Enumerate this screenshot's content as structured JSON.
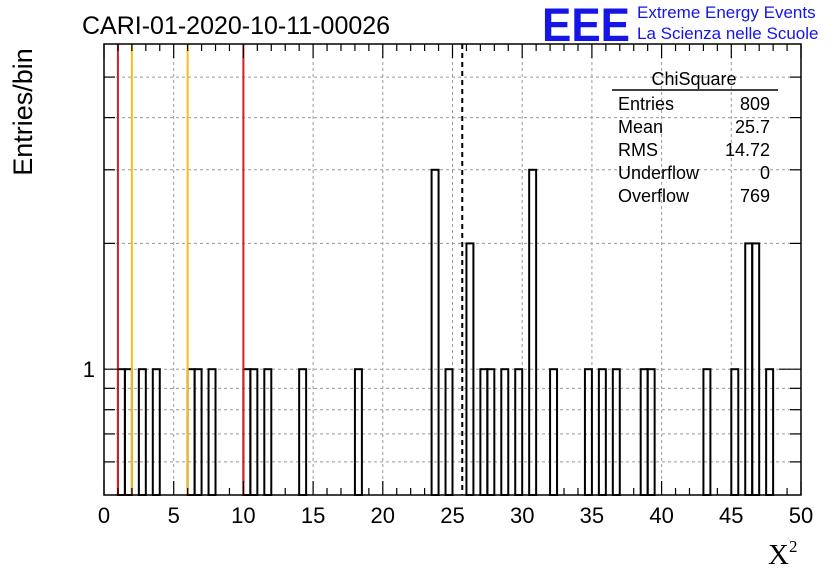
{
  "chart_data": {
    "type": "histogram",
    "title": "CARI-01-2020-10-11-00026",
    "xlabel": "X",
    "xlabel_superscript": "2",
    "ylabel": "Entries/bin",
    "xlim": [
      0,
      50
    ],
    "ylim": [
      0.5,
      6
    ],
    "log_y": true,
    "grid": true,
    "x_ticks": [
      "0",
      "5",
      "10",
      "15",
      "20",
      "25",
      "30",
      "35",
      "40",
      "45",
      "50"
    ],
    "y_ticks": [
      "1"
    ],
    "bin_width": 0.5,
    "bins": [
      {
        "x": 1.0,
        "v": 1
      },
      {
        "x": 1.5,
        "v": 1
      },
      {
        "x": 2.5,
        "v": 1
      },
      {
        "x": 3.5,
        "v": 1
      },
      {
        "x": 6.0,
        "v": 1
      },
      {
        "x": 6.5,
        "v": 1
      },
      {
        "x": 7.5,
        "v": 1
      },
      {
        "x": 10.0,
        "v": 1
      },
      {
        "x": 10.5,
        "v": 1
      },
      {
        "x": 11.5,
        "v": 1
      },
      {
        "x": 14.0,
        "v": 1
      },
      {
        "x": 18.0,
        "v": 1
      },
      {
        "x": 23.5,
        "v": 3
      },
      {
        "x": 24.5,
        "v": 1
      },
      {
        "x": 26.0,
        "v": 2
      },
      {
        "x": 27.0,
        "v": 1
      },
      {
        "x": 27.5,
        "v": 1
      },
      {
        "x": 28.5,
        "v": 1
      },
      {
        "x": 29.5,
        "v": 1
      },
      {
        "x": 30.5,
        "v": 3
      },
      {
        "x": 32.0,
        "v": 1
      },
      {
        "x": 34.5,
        "v": 1
      },
      {
        "x": 35.5,
        "v": 1
      },
      {
        "x": 36.5,
        "v": 1
      },
      {
        "x": 38.5,
        "v": 1
      },
      {
        "x": 39.0,
        "v": 1
      },
      {
        "x": 43.0,
        "v": 1
      },
      {
        "x": 45.0,
        "v": 1
      },
      {
        "x": 46.0,
        "v": 2
      },
      {
        "x": 46.5,
        "v": 2
      },
      {
        "x": 47.5,
        "v": 1
      }
    ],
    "vertical_lines": [
      {
        "x": 1.0,
        "color": "#d62020",
        "style": "solid"
      },
      {
        "x": 2.0,
        "color": "#f0c020",
        "style": "solid"
      },
      {
        "x": 6.0,
        "color": "#f0c020",
        "style": "solid"
      },
      {
        "x": 10.0,
        "color": "#d62020",
        "style": "solid"
      },
      {
        "x": 25.7,
        "color": "#000000",
        "style": "dashed"
      }
    ],
    "stats_box": {
      "title": "ChiSquare",
      "rows": [
        {
          "label": "Entries",
          "value": "809"
        },
        {
          "label": "Mean",
          "value": "25.7"
        },
        {
          "label": "RMS",
          "value": "14.72"
        },
        {
          "label": "Underflow",
          "value": "0"
        },
        {
          "label": "Overflow",
          "value": "769"
        }
      ]
    }
  },
  "logo": {
    "mark": "EEE",
    "line1": "Extreme Energy Events",
    "line2": "La Scienza nelle Scuole",
    "color": "#1515e6"
  }
}
